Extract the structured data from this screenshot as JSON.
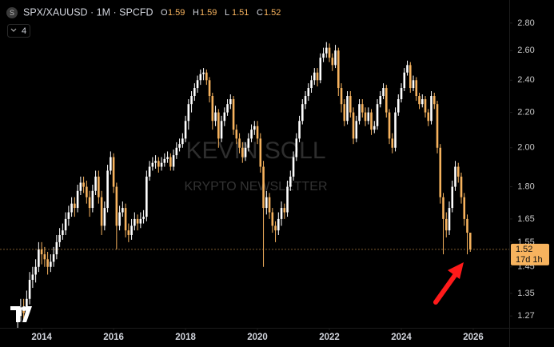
{
  "symbol_icon": "S",
  "indicators_count": 4,
  "chart_data": {
    "type": "candlestick",
    "title": "SPX/XAUUSD · 1M · SPCFD",
    "ohlc_labels": [
      "O",
      "H",
      "L",
      "C"
    ],
    "watermark": [
      "KEVIN SOLL",
      "KRYPTO NEWSLETTER"
    ],
    "countdown": "17d 1h",
    "up_color": "#ffffff",
    "down_color": "#f7b35e",
    "log_scale": true,
    "ylim": [
      1.23,
      2.98
    ],
    "yticks": [
      {
        "value": 2.8,
        "label": "2.80"
      },
      {
        "value": 2.6,
        "label": "2.60"
      },
      {
        "value": 2.4,
        "label": "2.40"
      },
      {
        "value": 2.2,
        "label": "2.20"
      },
      {
        "value": 2.0,
        "label": "2.00"
      },
      {
        "value": 1.8,
        "label": "1.80"
      },
      1.65,
      1.55,
      1.45,
      1.35,
      1.27
    ],
    "xlim": [
      -5.9,
      164
    ],
    "xticks": [
      {
        "value": 8,
        "label": "2014"
      },
      {
        "value": 32,
        "label": "2016"
      },
      {
        "value": 56,
        "label": "2018"
      },
      {
        "value": 80,
        "label": "2020"
      },
      {
        "value": 104,
        "label": "2022"
      },
      {
        "value": 128,
        "label": "2024"
      },
      {
        "value": 152,
        "label": "2026"
      }
    ],
    "candles": [
      [
        1.25,
        1.3,
        1.23,
        1.27
      ],
      [
        1.27,
        1.33,
        1.25,
        1.3
      ],
      [
        1.3,
        1.33,
        1.25,
        1.28
      ],
      [
        1.28,
        1.36,
        1.26,
        1.33
      ],
      [
        1.33,
        1.43,
        1.31,
        1.4
      ],
      [
        1.4,
        1.45,
        1.37,
        1.42
      ],
      [
        1.42,
        1.48,
        1.39,
        1.45
      ],
      [
        1.45,
        1.55,
        1.43,
        1.52
      ],
      [
        1.52,
        1.55,
        1.46,
        1.5
      ],
      [
        1.5,
        1.53,
        1.45,
        1.48
      ],
      [
        1.48,
        1.51,
        1.42,
        1.45
      ],
      [
        1.45,
        1.5,
        1.43,
        1.47
      ],
      [
        1.47,
        1.53,
        1.45,
        1.5
      ],
      [
        1.5,
        1.58,
        1.48,
        1.55
      ],
      [
        1.55,
        1.61,
        1.53,
        1.58
      ],
      [
        1.58,
        1.63,
        1.56,
        1.6
      ],
      [
        1.6,
        1.68,
        1.58,
        1.65
      ],
      [
        1.65,
        1.71,
        1.62,
        1.68
      ],
      [
        1.68,
        1.75,
        1.66,
        1.72
      ],
      [
        1.72,
        1.75,
        1.66,
        1.7
      ],
      [
        1.7,
        1.81,
        1.68,
        1.78
      ],
      [
        1.78,
        1.85,
        1.76,
        1.82
      ],
      [
        1.82,
        1.85,
        1.77,
        1.8
      ],
      [
        1.8,
        1.83,
        1.72,
        1.75
      ],
      [
        1.75,
        1.78,
        1.66,
        1.7
      ],
      [
        1.7,
        1.81,
        1.68,
        1.78
      ],
      [
        1.78,
        1.88,
        1.76,
        1.85
      ],
      [
        1.85,
        1.88,
        1.72,
        1.75
      ],
      [
        1.75,
        1.78,
        1.58,
        1.62
      ],
      [
        1.62,
        1.73,
        1.6,
        1.7
      ],
      [
        1.7,
        1.91,
        1.68,
        1.88
      ],
      [
        1.88,
        1.98,
        1.86,
        1.95
      ],
      [
        1.95,
        1.97,
        1.77,
        1.8
      ],
      [
        1.8,
        1.82,
        1.52,
        1.62
      ],
      [
        1.62,
        1.71,
        1.6,
        1.68
      ],
      [
        1.68,
        1.73,
        1.66,
        1.7
      ],
      [
        1.7,
        1.72,
        1.57,
        1.6
      ],
      [
        1.6,
        1.63,
        1.55,
        1.58
      ],
      [
        1.58,
        1.65,
        1.56,
        1.62
      ],
      [
        1.62,
        1.68,
        1.6,
        1.65
      ],
      [
        1.65,
        1.67,
        1.6,
        1.63
      ],
      [
        1.63,
        1.68,
        1.61,
        1.65
      ],
      [
        1.65,
        1.69,
        1.63,
        1.66
      ],
      [
        1.66,
        1.88,
        1.64,
        1.85
      ],
      [
        1.85,
        1.93,
        1.83,
        1.9
      ],
      [
        1.9,
        1.95,
        1.88,
        1.92
      ],
      [
        1.92,
        1.96,
        1.89,
        1.93
      ],
      [
        1.93,
        1.95,
        1.87,
        1.9
      ],
      [
        1.9,
        1.95,
        1.88,
        1.92
      ],
      [
        1.92,
        1.97,
        1.9,
        1.94
      ],
      [
        1.94,
        1.98,
        1.92,
        1.95
      ],
      [
        1.95,
        1.97,
        1.88,
        1.9
      ],
      [
        1.9,
        1.99,
        1.88,
        1.96
      ],
      [
        1.96,
        2.03,
        1.94,
        2.0
      ],
      [
        2.0,
        2.05,
        1.98,
        2.02
      ],
      [
        2.02,
        2.08,
        2.0,
        2.05
      ],
      [
        2.05,
        2.18,
        2.03,
        2.15
      ],
      [
        2.15,
        2.28,
        2.1,
        2.25
      ],
      [
        2.25,
        2.33,
        2.2,
        2.3
      ],
      [
        2.3,
        2.38,
        2.27,
        2.35
      ],
      [
        2.35,
        2.43,
        2.32,
        2.4
      ],
      [
        2.4,
        2.47,
        2.37,
        2.44
      ],
      [
        2.44,
        2.48,
        2.4,
        2.45
      ],
      [
        2.45,
        2.47,
        2.37,
        2.4
      ],
      [
        2.4,
        2.42,
        2.26,
        2.3
      ],
      [
        2.3,
        2.32,
        2.1,
        2.15
      ],
      [
        2.15,
        2.24,
        2.12,
        2.2
      ],
      [
        2.2,
        2.22,
        2.0,
        2.05
      ],
      [
        2.05,
        2.18,
        2.03,
        2.15
      ],
      [
        2.15,
        2.23,
        2.12,
        2.2
      ],
      [
        2.2,
        2.28,
        2.18,
        2.25
      ],
      [
        2.25,
        2.31,
        2.22,
        2.28
      ],
      [
        2.28,
        2.3,
        2.07,
        2.1
      ],
      [
        2.1,
        2.13,
        2.02,
        2.05
      ],
      [
        2.05,
        2.08,
        1.97,
        2.0
      ],
      [
        2.0,
        2.03,
        1.92,
        1.95
      ],
      [
        1.95,
        2.03,
        1.93,
        2.0
      ],
      [
        2.0,
        2.08,
        1.98,
        2.05
      ],
      [
        2.05,
        2.13,
        2.03,
        2.1
      ],
      [
        2.1,
        2.15,
        2.07,
        2.12
      ],
      [
        2.12,
        2.15,
        2.02,
        2.05
      ],
      [
        2.05,
        2.08,
        1.87,
        1.9
      ],
      [
        1.9,
        1.93,
        1.45,
        1.7
      ],
      [
        1.7,
        1.78,
        1.67,
        1.75
      ],
      [
        1.75,
        1.77,
        1.65,
        1.68
      ],
      [
        1.68,
        1.7,
        1.59,
        1.62
      ],
      [
        1.62,
        1.64,
        1.55,
        1.6
      ],
      [
        1.6,
        1.68,
        1.58,
        1.65
      ],
      [
        1.65,
        1.73,
        1.62,
        1.7
      ],
      [
        1.7,
        1.72,
        1.65,
        1.68
      ],
      [
        1.68,
        1.83,
        1.66,
        1.8
      ],
      [
        1.8,
        1.88,
        1.78,
        1.85
      ],
      [
        1.85,
        1.98,
        1.83,
        1.95
      ],
      [
        1.95,
        2.08,
        1.93,
        2.05
      ],
      [
        2.05,
        2.18,
        2.03,
        2.15
      ],
      [
        2.15,
        2.28,
        2.13,
        2.25
      ],
      [
        2.25,
        2.33,
        2.22,
        2.3
      ],
      [
        2.3,
        2.38,
        2.27,
        2.35
      ],
      [
        2.35,
        2.43,
        2.32,
        2.4
      ],
      [
        2.4,
        2.48,
        2.37,
        2.45
      ],
      [
        2.45,
        2.48,
        2.36,
        2.4
      ],
      [
        2.4,
        2.58,
        2.38,
        2.55
      ],
      [
        2.55,
        2.62,
        2.52,
        2.58
      ],
      [
        2.58,
        2.66,
        2.55,
        2.62
      ],
      [
        2.62,
        2.65,
        2.52,
        2.55
      ],
      [
        2.55,
        2.58,
        2.46,
        2.5
      ],
      [
        2.5,
        2.64,
        2.48,
        2.6
      ],
      [
        2.6,
        2.62,
        2.3,
        2.35
      ],
      [
        2.35,
        2.38,
        2.2,
        2.25
      ],
      [
        2.25,
        2.28,
        2.12,
        2.15
      ],
      [
        2.15,
        2.33,
        2.13,
        2.3
      ],
      [
        2.3,
        2.33,
        2.17,
        2.2
      ],
      [
        2.2,
        2.23,
        2.02,
        2.05
      ],
      [
        2.05,
        2.18,
        2.03,
        2.15
      ],
      [
        2.15,
        2.28,
        2.13,
        2.25
      ],
      [
        2.25,
        2.28,
        2.17,
        2.2
      ],
      [
        2.2,
        2.23,
        2.12,
        2.15
      ],
      [
        2.15,
        2.23,
        2.13,
        2.2
      ],
      [
        2.2,
        2.22,
        2.07,
        2.1
      ],
      [
        2.1,
        2.15,
        2.08,
        2.12
      ],
      [
        2.12,
        2.28,
        2.1,
        2.25
      ],
      [
        2.25,
        2.33,
        2.23,
        2.3
      ],
      [
        2.3,
        2.38,
        2.28,
        2.35
      ],
      [
        2.35,
        2.37,
        2.17,
        2.2
      ],
      [
        2.2,
        2.22,
        2.02,
        2.05
      ],
      [
        2.05,
        2.08,
        1.97,
        2.0
      ],
      [
        2.0,
        2.23,
        1.98,
        2.2
      ],
      [
        2.2,
        2.31,
        2.18,
        2.28
      ],
      [
        2.28,
        2.38,
        2.26,
        2.35
      ],
      [
        2.35,
        2.48,
        2.33,
        2.45
      ],
      [
        2.45,
        2.53,
        2.43,
        2.5
      ],
      [
        2.5,
        2.52,
        2.32,
        2.35
      ],
      [
        2.35,
        2.43,
        2.33,
        2.4
      ],
      [
        2.4,
        2.42,
        2.27,
        2.3
      ],
      [
        2.3,
        2.32,
        2.22,
        2.25
      ],
      [
        2.25,
        2.31,
        2.23,
        2.28
      ],
      [
        2.28,
        2.3,
        2.17,
        2.2
      ],
      [
        2.2,
        2.22,
        2.12,
        2.15
      ],
      [
        2.15,
        2.33,
        2.13,
        2.3
      ],
      [
        2.3,
        2.32,
        2.22,
        2.25
      ],
      [
        2.25,
        2.27,
        1.97,
        2.0
      ],
      [
        2.0,
        2.02,
        1.72,
        1.75
      ],
      [
        1.75,
        1.77,
        1.5,
        1.65
      ],
      [
        1.65,
        1.68,
        1.57,
        1.6
      ],
      [
        1.6,
        1.73,
        1.58,
        1.7
      ],
      [
        1.7,
        1.83,
        1.68,
        1.8
      ],
      [
        1.8,
        1.93,
        1.78,
        1.9
      ],
      [
        1.9,
        1.92,
        1.82,
        1.85
      ],
      [
        1.85,
        1.87,
        1.72,
        1.75
      ],
      [
        1.75,
        1.77,
        1.62,
        1.65
      ],
      [
        1.65,
        1.67,
        1.5,
        1.59
      ],
      [
        1.59,
        1.59,
        1.51,
        1.52
      ]
    ]
  }
}
